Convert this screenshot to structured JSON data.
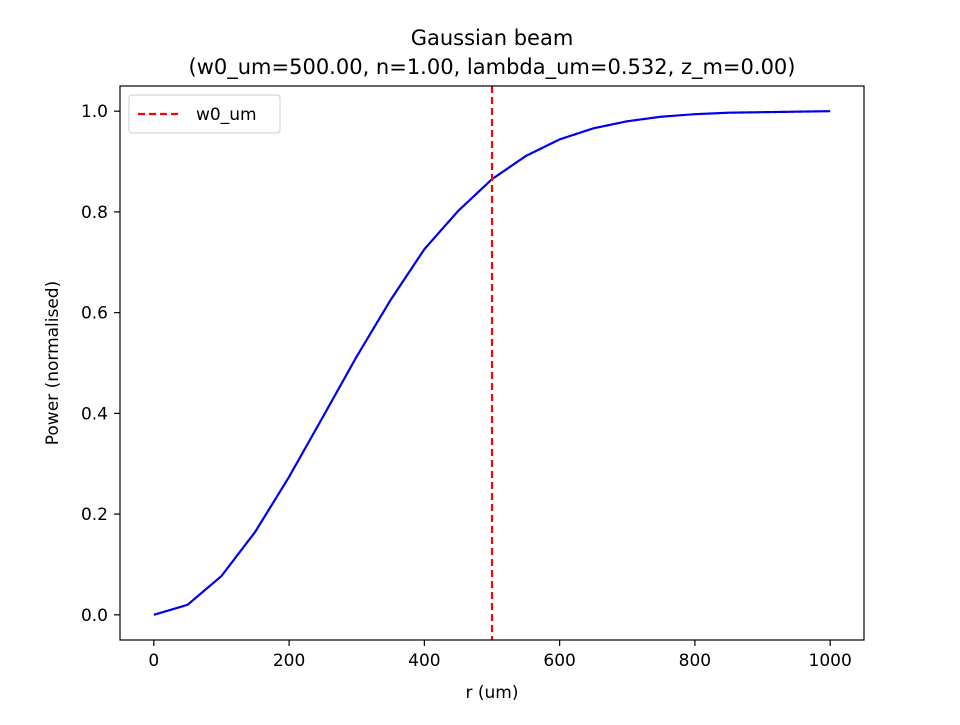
{
  "chart_data": {
    "type": "line",
    "title": "Gaussian beam",
    "subtitle": "(w0_um=500.00, n=1.00, lambda_um=0.532, z_m=0.00)",
    "xlabel": "r (um)",
    "ylabel": "Power (normalised)",
    "xlim": [
      -50,
      1050
    ],
    "ylim": [
      -0.05,
      1.05
    ],
    "xticks": [
      0,
      200,
      400,
      600,
      800,
      1000
    ],
    "xtick_labels": [
      "0",
      "200",
      "400",
      "600",
      "800",
      "1000"
    ],
    "yticks": [
      0.0,
      0.2,
      0.4,
      0.6,
      0.8,
      1.0
    ],
    "ytick_labels": [
      "0.0",
      "0.2",
      "0.4",
      "0.6",
      "0.8",
      "1.0"
    ],
    "grid": false,
    "legend_position": "top-left",
    "series": [
      {
        "color": "#0000ee",
        "style": "solid",
        "x": [
          0,
          50,
          100,
          150,
          200,
          250,
          300,
          350,
          400,
          450,
          500,
          550,
          600,
          650,
          700,
          750,
          800,
          850,
          900,
          950,
          1000
        ],
        "y": [
          0.0,
          0.02,
          0.077,
          0.165,
          0.274,
          0.393,
          0.513,
          0.625,
          0.726,
          0.802,
          0.865,
          0.911,
          0.944,
          0.966,
          0.98,
          0.989,
          0.994,
          0.997,
          0.998,
          0.999,
          1.0
        ]
      }
    ],
    "vlines": [
      {
        "name": "w0_um",
        "x": 500,
        "color": "#ff0000",
        "style": "dashed"
      }
    ]
  }
}
